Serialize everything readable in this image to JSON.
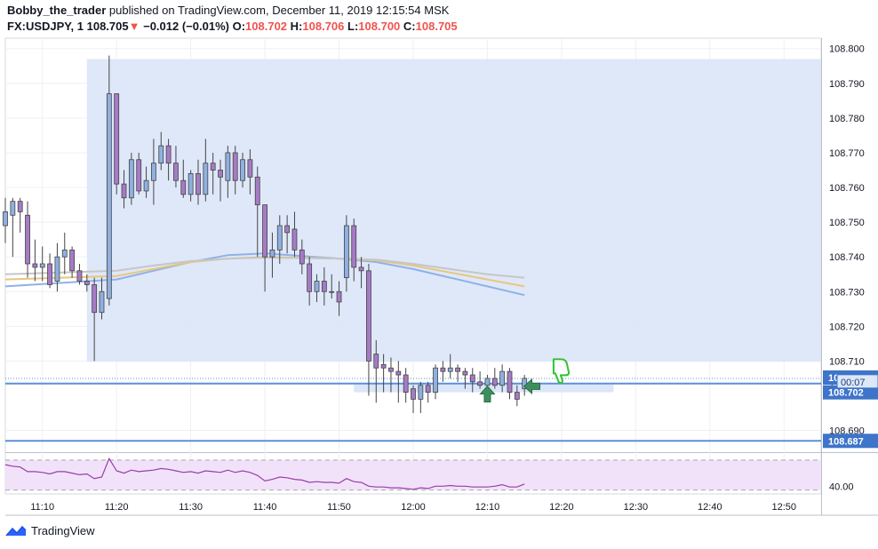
{
  "header": {
    "author": "Bobby_the_trader",
    "published_text": "published on TradingView.com, December 11, 2019 12:15:54 MSK",
    "symbol": "FX:USDJPY, 1",
    "last_price": "108.705",
    "change_arrow": "▼",
    "change": "−0.012 (−0.01%)",
    "o_label": "O:",
    "o_value": "108.702",
    "h_label": "H:",
    "h_value": "108.706",
    "l_label": "L:",
    "l_value": "108.700",
    "c_label": "C:",
    "c_value": "108.705"
  },
  "footer": {
    "brand": "TradingView",
    "logo_icon": "tradingview-logo-icon"
  },
  "colors": {
    "bull_body": "#8fb0e0",
    "bear_body": "#a67bc6",
    "wick": "#444444",
    "zone_fill": "#dbe6f8",
    "hline": "#5b8fd9",
    "ema_fast": "#8fb1e8",
    "ema_mid": "#e6c77f",
    "ema_slow": "#c6c6c6",
    "osc_line": "#9a3ea6",
    "osc_fill": "#f1e2fa",
    "arrow_green": "#3f8f5e",
    "thumb_green": "#2ec22e",
    "price_tag": "#3e74c9"
  },
  "chart_data": {
    "type": "candlestick",
    "x_axis": {
      "tick_labels": [
        "11:10",
        "11:20",
        "11:30",
        "11:40",
        "11:50",
        "12:00",
        "12:10",
        "12:20",
        "12:30",
        "12:40",
        "12:50"
      ],
      "range_minutes": [
        "11:05",
        "12:55"
      ]
    },
    "y_axis": {
      "tick_labels": [
        "108.800",
        "108.790",
        "108.780",
        "108.770",
        "108.760",
        "108.750",
        "108.740",
        "108.730",
        "108.720",
        "108.710",
        "108.690"
      ],
      "range": [
        108.684,
        108.803
      ]
    },
    "price_tags": [
      {
        "value": 108.705,
        "label": "108.705"
      },
      {
        "value": 108.702,
        "label": "108.702"
      },
      {
        "value": 108.687,
        "label": "108.687"
      }
    ],
    "countdown": {
      "value": 108.7035,
      "label": "00:07",
      "partial_label": "1"
    },
    "horizontal_lines": [
      108.7035,
      108.687
    ],
    "dotted_line": 108.705,
    "zones": [
      {
        "t_start": "11:16",
        "t_end": "12:55",
        "high": 108.797,
        "low": 108.7098
      },
      {
        "t_start": "11:52",
        "t_end": "12:27",
        "high": 108.7033,
        "low": 108.701
      }
    ],
    "candles": [
      {
        "t": "11:05",
        "o": 108.749,
        "h": 108.757,
        "l": 108.744,
        "c": 108.753
      },
      {
        "t": "11:06",
        "o": 108.752,
        "h": 108.757,
        "l": 108.74,
        "c": 108.756
      },
      {
        "t": "11:07",
        "o": 108.756,
        "h": 108.757,
        "l": 108.747,
        "c": 108.753
      },
      {
        "t": "11:08",
        "o": 108.752,
        "h": 108.756,
        "l": 108.734,
        "c": 108.738
      },
      {
        "t": "11:09",
        "o": 108.738,
        "h": 108.745,
        "l": 108.733,
        "c": 108.737
      },
      {
        "t": "11:10",
        "o": 108.737,
        "h": 108.743,
        "l": 108.733,
        "c": 108.738
      },
      {
        "t": "11:11",
        "o": 108.738,
        "h": 108.741,
        "l": 108.731,
        "c": 108.732
      },
      {
        "t": "11:12",
        "o": 108.733,
        "h": 108.744,
        "l": 108.73,
        "c": 108.74
      },
      {
        "t": "11:13",
        "o": 108.74,
        "h": 108.747,
        "l": 108.735,
        "c": 108.742
      },
      {
        "t": "11:14",
        "o": 108.742,
        "h": 108.743,
        "l": 108.734,
        "c": 108.736
      },
      {
        "t": "11:15",
        "o": 108.736,
        "h": 108.738,
        "l": 108.732,
        "c": 108.733
      },
      {
        "t": "11:16",
        "o": 108.733,
        "h": 108.735,
        "l": 108.73,
        "c": 108.732
      },
      {
        "t": "11:17",
        "o": 108.732,
        "h": 108.734,
        "l": 108.71,
        "c": 108.724
      },
      {
        "t": "11:18",
        "o": 108.724,
        "h": 108.734,
        "l": 108.722,
        "c": 108.73
      },
      {
        "t": "11:19",
        "o": 108.728,
        "h": 108.798,
        "l": 108.726,
        "c": 108.787
      },
      {
        "t": "11:20",
        "o": 108.787,
        "h": 108.787,
        "l": 108.758,
        "c": 108.761
      },
      {
        "t": "11:21",
        "o": 108.761,
        "h": 108.765,
        "l": 108.754,
        "c": 108.757
      },
      {
        "t": "11:22",
        "o": 108.757,
        "h": 108.77,
        "l": 108.755,
        "c": 108.768
      },
      {
        "t": "11:23",
        "o": 108.768,
        "h": 108.77,
        "l": 108.758,
        "c": 108.759
      },
      {
        "t": "11:24",
        "o": 108.759,
        "h": 108.766,
        "l": 108.757,
        "c": 108.762
      },
      {
        "t": "11:25",
        "o": 108.762,
        "h": 108.774,
        "l": 108.755,
        "c": 108.767
      },
      {
        "t": "11:26",
        "o": 108.767,
        "h": 108.776,
        "l": 108.765,
        "c": 108.772
      },
      {
        "t": "11:27",
        "o": 108.772,
        "h": 108.774,
        "l": 108.762,
        "c": 108.767
      },
      {
        "t": "11:28",
        "o": 108.767,
        "h": 108.772,
        "l": 108.76,
        "c": 108.762
      },
      {
        "t": "11:29",
        "o": 108.762,
        "h": 108.768,
        "l": 108.757,
        "c": 108.758
      },
      {
        "t": "11:30",
        "o": 108.758,
        "h": 108.765,
        "l": 108.756,
        "c": 108.764
      },
      {
        "t": "11:31",
        "o": 108.764,
        "h": 108.768,
        "l": 108.755,
        "c": 108.758
      },
      {
        "t": "11:32",
        "o": 108.758,
        "h": 108.774,
        "l": 108.756,
        "c": 108.767
      },
      {
        "t": "11:33",
        "o": 108.767,
        "h": 108.77,
        "l": 108.758,
        "c": 108.765
      },
      {
        "t": "11:34",
        "o": 108.765,
        "h": 108.768,
        "l": 108.756,
        "c": 108.763
      },
      {
        "t": "11:35",
        "o": 108.762,
        "h": 108.772,
        "l": 108.757,
        "c": 108.77
      },
      {
        "t": "11:36",
        "o": 108.77,
        "h": 108.772,
        "l": 108.758,
        "c": 108.762
      },
      {
        "t": "11:37",
        "o": 108.762,
        "h": 108.77,
        "l": 108.76,
        "c": 108.768
      },
      {
        "t": "11:38",
        "o": 108.768,
        "h": 108.771,
        "l": 108.758,
        "c": 108.763
      },
      {
        "t": "11:39",
        "o": 108.763,
        "h": 108.766,
        "l": 108.74,
        "c": 108.755
      },
      {
        "t": "11:40",
        "o": 108.755,
        "h": 108.755,
        "l": 108.73,
        "c": 108.74
      },
      {
        "t": "11:41",
        "o": 108.74,
        "h": 108.747,
        "l": 108.734,
        "c": 108.742
      },
      {
        "t": "11:42",
        "o": 108.742,
        "h": 108.752,
        "l": 108.738,
        "c": 108.749
      },
      {
        "t": "11:43",
        "o": 108.749,
        "h": 108.752,
        "l": 108.741,
        "c": 108.747
      },
      {
        "t": "11:44",
        "o": 108.748,
        "h": 108.753,
        "l": 108.74,
        "c": 108.742
      },
      {
        "t": "11:45",
        "o": 108.742,
        "h": 108.745,
        "l": 108.735,
        "c": 108.738
      },
      {
        "t": "11:46",
        "o": 108.738,
        "h": 108.74,
        "l": 108.726,
        "c": 108.73
      },
      {
        "t": "11:47",
        "o": 108.73,
        "h": 108.735,
        "l": 108.727,
        "c": 108.733
      },
      {
        "t": "11:48",
        "o": 108.733,
        "h": 108.737,
        "l": 108.726,
        "c": 108.73
      },
      {
        "t": "11:49",
        "o": 108.73,
        "h": 108.735,
        "l": 108.728,
        "c": 108.73
      },
      {
        "t": "11:50",
        "o": 108.73,
        "h": 108.733,
        "l": 108.723,
        "c": 108.727
      },
      {
        "t": "11:51",
        "o": 108.734,
        "h": 108.752,
        "l": 108.73,
        "c": 108.749
      },
      {
        "t": "11:52",
        "o": 108.749,
        "h": 108.751,
        "l": 108.733,
        "c": 108.737
      },
      {
        "t": "11:53",
        "o": 108.737,
        "h": 108.74,
        "l": 108.731,
        "c": 108.736
      },
      {
        "t": "11:54",
        "o": 108.736,
        "h": 108.738,
        "l": 108.7,
        "c": 108.71
      },
      {
        "t": "11:55",
        "o": 108.712,
        "h": 108.716,
        "l": 108.698,
        "c": 108.708
      },
      {
        "t": "11:56",
        "o": 108.709,
        "h": 108.712,
        "l": 108.701,
        "c": 108.708
      },
      {
        "t": "11:57",
        "o": 108.708,
        "h": 108.711,
        "l": 108.701,
        "c": 108.707
      },
      {
        "t": "11:58",
        "o": 108.707,
        "h": 108.71,
        "l": 108.698,
        "c": 108.706
      },
      {
        "t": "11:59",
        "o": 108.706,
        "h": 108.708,
        "l": 108.698,
        "c": 108.701
      },
      {
        "t": "12:00",
        "o": 108.702,
        "h": 108.703,
        "l": 108.695,
        "c": 108.699
      },
      {
        "t": "12:01",
        "o": 108.699,
        "h": 108.704,
        "l": 108.695,
        "c": 108.703
      },
      {
        "t": "12:02",
        "o": 108.703,
        "h": 108.704,
        "l": 108.698,
        "c": 108.701
      },
      {
        "t": "12:03",
        "o": 108.701,
        "h": 108.709,
        "l": 108.699,
        "c": 108.708
      },
      {
        "t": "12:04",
        "o": 108.708,
        "h": 108.71,
        "l": 108.704,
        "c": 108.707
      },
      {
        "t": "12:05",
        "o": 108.707,
        "h": 108.712,
        "l": 108.705,
        "c": 108.708
      },
      {
        "t": "12:06",
        "o": 108.708,
        "h": 108.709,
        "l": 108.704,
        "c": 108.707
      },
      {
        "t": "12:07",
        "o": 108.707,
        "h": 108.708,
        "l": 108.702,
        "c": 108.706
      },
      {
        "t": "12:08",
        "o": 108.706,
        "h": 108.708,
        "l": 108.701,
        "c": 108.704
      },
      {
        "t": "12:09",
        "o": 108.704,
        "h": 108.707,
        "l": 108.702,
        "c": 108.703
      },
      {
        "t": "12:10",
        "o": 108.703,
        "h": 108.706,
        "l": 108.702,
        "c": 108.705
      },
      {
        "t": "12:11",
        "o": 108.705,
        "h": 108.708,
        "l": 108.702,
        "c": 108.703
      },
      {
        "t": "12:12",
        "o": 108.703,
        "h": 108.709,
        "l": 108.701,
        "c": 108.707
      },
      {
        "t": "12:13",
        "o": 108.707,
        "h": 108.708,
        "l": 108.699,
        "c": 108.701
      },
      {
        "t": "12:14",
        "o": 108.701,
        "h": 108.703,
        "l": 108.697,
        "c": 108.699
      },
      {
        "t": "12:15",
        "o": 108.702,
        "h": 108.706,
        "l": 108.7,
        "c": 108.705
      }
    ],
    "ema_series": [
      {
        "key": "ema_fast",
        "points": [
          [
            "11:05",
            108.7315
          ],
          [
            "11:20",
            108.7335
          ],
          [
            "11:25",
            108.736
          ],
          [
            "11:30",
            108.7385
          ],
          [
            "11:35",
            108.7405
          ],
          [
            "11:40",
            108.741
          ],
          [
            "11:50",
            108.7395
          ],
          [
            "11:55",
            108.7385
          ],
          [
            "12:00",
            108.7365
          ],
          [
            "12:05",
            108.734
          ],
          [
            "12:10",
            108.7315
          ],
          [
            "12:15",
            108.729
          ]
        ]
      },
      {
        "key": "ema_mid",
        "points": [
          [
            "11:05",
            108.7335
          ],
          [
            "11:20",
            108.7345
          ],
          [
            "11:25",
            108.7365
          ],
          [
            "11:30",
            108.7385
          ],
          [
            "11:35",
            108.7395
          ],
          [
            "11:40",
            108.74
          ],
          [
            "11:50",
            108.7395
          ],
          [
            "11:55",
            108.739
          ],
          [
            "12:00",
            108.7375
          ],
          [
            "12:05",
            108.7355
          ],
          [
            "12:10",
            108.7335
          ],
          [
            "12:15",
            108.7315
          ]
        ]
      },
      {
        "key": "ema_slow",
        "points": [
          [
            "11:05",
            108.735
          ],
          [
            "11:20",
            108.736
          ],
          [
            "11:25",
            108.7375
          ],
          [
            "11:30",
            108.7388
          ],
          [
            "11:35",
            108.7395
          ],
          [
            "11:40",
            108.7398
          ],
          [
            "11:50",
            108.7395
          ],
          [
            "11:55",
            108.7392
          ],
          [
            "12:00",
            108.738
          ],
          [
            "12:05",
            108.7365
          ],
          [
            "12:10",
            108.735
          ],
          [
            "12:15",
            108.734
          ]
        ]
      }
    ],
    "oscillator": {
      "tick_label": "40.00",
      "tick_value": 40,
      "range": [
        30,
        82
      ],
      "band": [
        35,
        74
      ],
      "values": [
        [
          "11:05",
          68
        ],
        [
          "11:06",
          66
        ],
        [
          "11:07",
          65
        ],
        [
          "11:08",
          59
        ],
        [
          "11:09",
          59
        ],
        [
          "11:10",
          58
        ],
        [
          "11:11",
          56
        ],
        [
          "11:12",
          59
        ],
        [
          "11:13",
          59
        ],
        [
          "11:14",
          57
        ],
        [
          "11:15",
          55
        ],
        [
          "11:16",
          56
        ],
        [
          "11:17",
          50
        ],
        [
          "11:18",
          52
        ],
        [
          "11:19",
          76
        ],
        [
          "11:20",
          60
        ],
        [
          "11:21",
          57
        ],
        [
          "11:22",
          61
        ],
        [
          "11:23",
          59
        ],
        [
          "11:24",
          60
        ],
        [
          "11:25",
          61
        ],
        [
          "11:26",
          63
        ],
        [
          "11:27",
          62
        ],
        [
          "11:28",
          60
        ],
        [
          "11:29",
          58
        ],
        [
          "11:30",
          59
        ],
        [
          "11:31",
          57
        ],
        [
          "11:32",
          60
        ],
        [
          "11:33",
          59
        ],
        [
          "11:34",
          58
        ],
        [
          "11:35",
          61
        ],
        [
          "11:36",
          58
        ],
        [
          "11:37",
          60
        ],
        [
          "11:38",
          58
        ],
        [
          "11:39",
          54
        ],
        [
          "11:40",
          47
        ],
        [
          "11:41",
          49
        ],
        [
          "11:42",
          52
        ],
        [
          "11:43",
          51
        ],
        [
          "11:44",
          49
        ],
        [
          "11:45",
          48
        ],
        [
          "11:46",
          45
        ],
        [
          "11:47",
          46
        ],
        [
          "11:48",
          45
        ],
        [
          "11:49",
          45
        ],
        [
          "11:50",
          44
        ],
        [
          "11:51",
          50
        ],
        [
          "11:52",
          46
        ],
        [
          "11:53",
          45
        ],
        [
          "11:54",
          40
        ],
        [
          "11:55",
          39
        ],
        [
          "11:56",
          39
        ],
        [
          "11:57",
          38
        ],
        [
          "11:58",
          38
        ],
        [
          "11:59",
          37
        ],
        [
          "12:00",
          36
        ],
        [
          "12:01",
          38
        ],
        [
          "12:02",
          37
        ],
        [
          "12:03",
          40
        ],
        [
          "12:04",
          40
        ],
        [
          "12:05",
          41
        ],
        [
          "12:06",
          40
        ],
        [
          "12:07",
          40
        ],
        [
          "12:08",
          39
        ],
        [
          "12:09",
          39
        ],
        [
          "12:10",
          39
        ],
        [
          "12:11",
          40
        ],
        [
          "12:12",
          42
        ],
        [
          "12:13",
          39
        ],
        [
          "12:14",
          39
        ],
        [
          "12:15",
          43
        ]
      ]
    },
    "annotations": [
      {
        "type": "up-arrow",
        "t": "12:10",
        "y": 108.7005,
        "name": "green-up-arrow-icon"
      },
      {
        "type": "left-arrow",
        "t": "12:16",
        "y": 108.7027,
        "name": "green-left-arrow-icon"
      },
      {
        "type": "thumbs-down",
        "t": "12:20",
        "y": 108.7077,
        "name": "thumbs-down-icon"
      }
    ]
  }
}
